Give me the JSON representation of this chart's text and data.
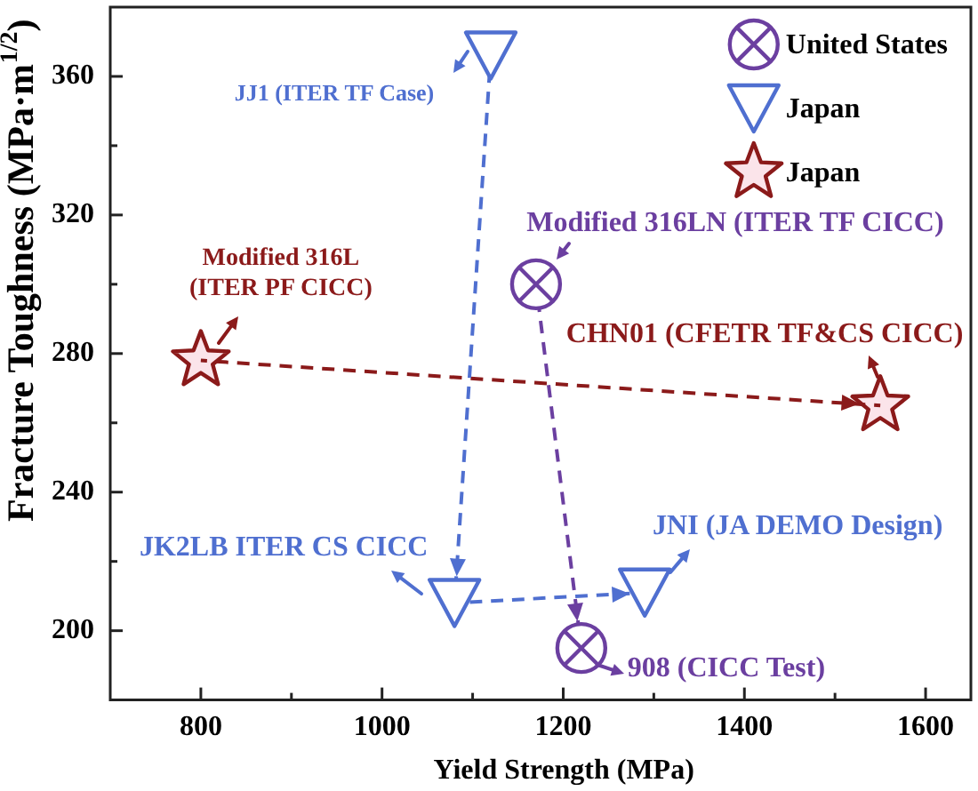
{
  "chart_data": {
    "type": "line",
    "xlabel": "Yield Strength (MPa)",
    "ylabel": "Fracture Toughness (MPa·m$^{1/2}$)",
    "xlim": [
      700,
      1650
    ],
    "ylim": [
      180,
      380
    ],
    "xticks": [
      800,
      {
        "value": 900,
        "label": null
      },
      1000,
      {
        "value": 1100,
        "label": null
      },
      1200,
      {
        "value": 1300,
        "label": null
      },
      1400,
      {
        "value": 1500,
        "label": null
      },
      1600
    ],
    "yticks": [
      200,
      {
        "value": 220,
        "label": null
      },
      240,
      {
        "value": 260,
        "label": null
      },
      280,
      {
        "value": 300,
        "label": null
      },
      320,
      {
        "value": 340,
        "label": null
      },
      360
    ],
    "grid": false,
    "legend": "top right",
    "line_style": "dashed",
    "series": [
      {
        "name": "United States",
        "color": "#6b3fa0",
        "marker": "circle",
        "x": [
          1170,
          1220
        ],
        "values": [
          300,
          195
        ]
      },
      {
        "name": "Japan",
        "color": "#4f6fd0",
        "marker": "triangle",
        "x": [
          1120,
          1080,
          1290
        ],
        "values": [
          366,
          208,
          211
        ]
      },
      {
        "name": "Japan",
        "color": "#8b1a1a",
        "marker": "star",
        "x": [
          800,
          1550
        ],
        "values": [
          278,
          265
        ]
      }
    ],
    "annotations": [
      {
        "text": "JJ1 (ITER TF Case)",
        "x": 1120,
        "y": 366
      },
      {
        "text": "Modified 316LN (ITER TF CICC)",
        "x": 1170,
        "y": 300
      },
      {
        "text": "Modified 316L (ITER PF CICC)",
        "x": 800,
        "y": 278
      },
      {
        "text": "CHN01 (CFETR TF&CS CICC)",
        "x": 1550,
        "y": 265
      },
      {
        "text": "JK2LB ITER CS CICC",
        "x": 1080,
        "y": 208
      },
      {
        "text": "JNI (JA DEMO Design)",
        "x": 1290,
        "y": 211
      },
      {
        "text": "908 (CICC Test)",
        "x": 1220,
        "y": 195
      }
    ]
  }
}
